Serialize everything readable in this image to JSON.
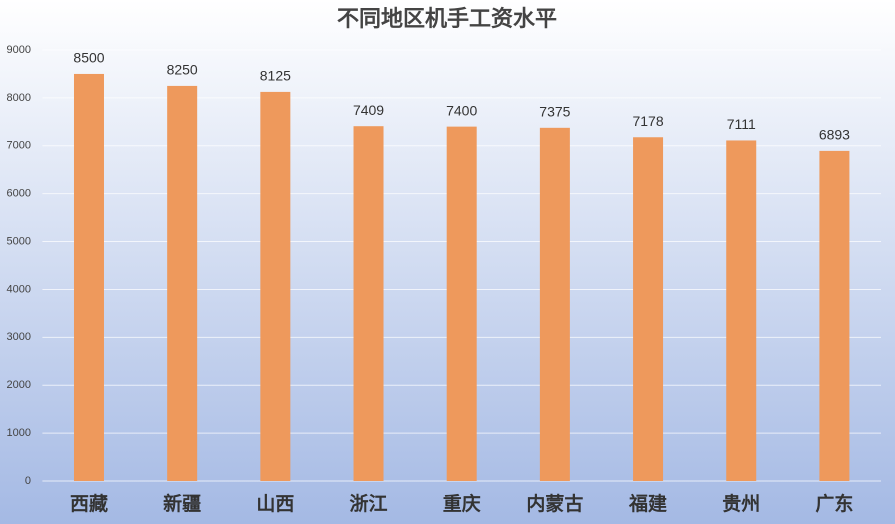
{
  "chart_data": {
    "type": "bar",
    "title": "不同地区机手工资水平",
    "categories": [
      "西藏",
      "新疆",
      "山西",
      "浙江",
      "重庆",
      "内蒙古",
      "福建",
      "贵州",
      "广东"
    ],
    "values": [
      8500,
      8250,
      8125,
      7409,
      7400,
      7375,
      7178,
      7111,
      6893
    ],
    "color": "#ee995c",
    "ylim": [
      0,
      9000
    ],
    "yticks": [
      0,
      1000,
      2000,
      3000,
      4000,
      5000,
      6000,
      7000,
      8000,
      9000
    ],
    "grid": true
  }
}
